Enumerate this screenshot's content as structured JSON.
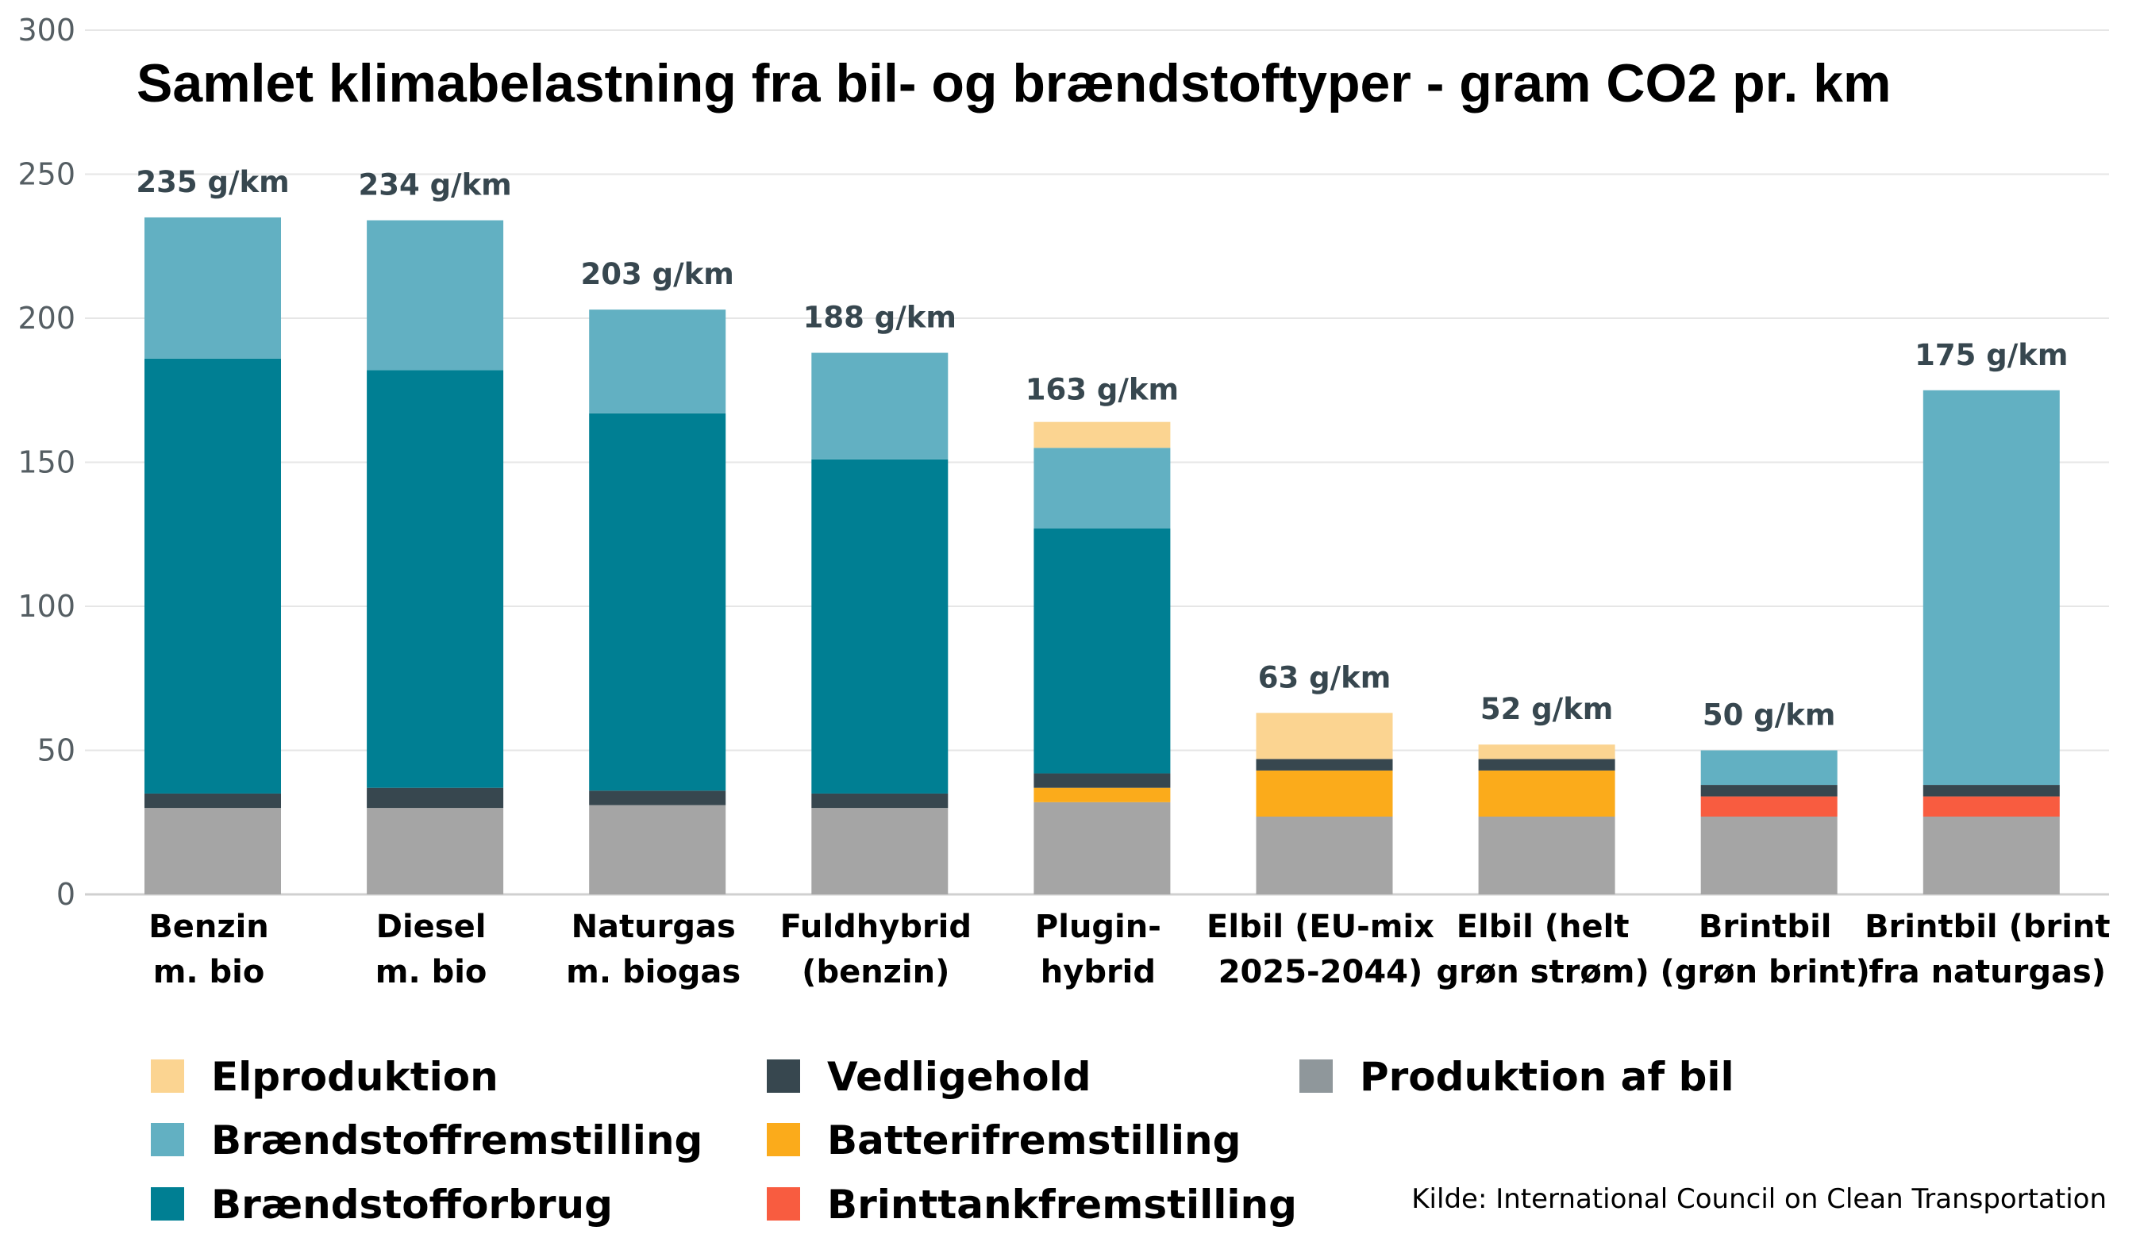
{
  "chart_data": {
    "type": "bar",
    "stacked": true,
    "title": "Samlet klimabelastning fra bil- og brændstoftyper - gram CO2 pr. km",
    "source": "Kilde: International Council on Clean Transportation",
    "ylim": [
      0,
      300
    ],
    "yticks": [
      0,
      50,
      100,
      150,
      200,
      250,
      300
    ],
    "grid": true,
    "legend_placement": "bottom",
    "categories": [
      [
        "Benzin",
        "m. bio"
      ],
      [
        "Diesel",
        "m. bio"
      ],
      [
        "Naturgas",
        "m. biogas"
      ],
      [
        "Fuldhybrid",
        "(benzin)"
      ],
      [
        "Plugin-",
        "hybrid"
      ],
      [
        "Elbil (EU-mix",
        "2025-2044)"
      ],
      [
        "Elbil (helt",
        "grøn strøm)"
      ],
      [
        "Brintbil",
        "(grøn brint)"
      ],
      [
        "Brintbil (brint",
        "fra naturgas)"
      ]
    ],
    "totals_labels": [
      "235 g/km",
      "234 g/km",
      "203 g/km",
      "188 g/km",
      "163 g/km",
      "63 g/km",
      "52 g/km",
      "50 g/km",
      "175 g/km"
    ],
    "totals": [
      235,
      234,
      203,
      188,
      163,
      63,
      52,
      50,
      175
    ],
    "series": [
      {
        "name": "Produktion af bil",
        "color": "#a5a5a5",
        "legend_color": "#8f979b",
        "values": [
          30,
          30,
          31,
          30,
          32,
          27,
          27,
          27,
          27
        ]
      },
      {
        "name": "Batterifremstilling",
        "color": "#fbab1b",
        "values": [
          0,
          0,
          0,
          0,
          5,
          16,
          16,
          0,
          0
        ]
      },
      {
        "name": "Brinttankfremstilling",
        "color": "#f85c40",
        "values": [
          0,
          0,
          0,
          0,
          0,
          0,
          0,
          7,
          7
        ]
      },
      {
        "name": "Vedligehold",
        "color": "#37474f",
        "values": [
          5,
          7,
          5,
          5,
          5,
          4,
          4,
          4,
          4
        ]
      },
      {
        "name": "Brændstofforbrug",
        "color": "#007f93",
        "values": [
          151,
          145,
          131,
          116,
          85,
          0,
          0,
          0,
          0
        ]
      },
      {
        "name": "Brændstoffremstilling",
        "color": "#62b0c2",
        "values": [
          49,
          52,
          36,
          37,
          28,
          0,
          0,
          12,
          137
        ]
      },
      {
        "name": "Elproduktion",
        "color": "#fbd491",
        "values": [
          0,
          0,
          0,
          0,
          9,
          16,
          5,
          0,
          0
        ]
      }
    ],
    "legend_order": [
      "Elproduktion",
      "Brændstoffremstilling",
      "Brændstofforbrug",
      "Vedligehold",
      "Batterifremstilling",
      "Brinttankfremstilling",
      "Produktion af bil"
    ]
  }
}
